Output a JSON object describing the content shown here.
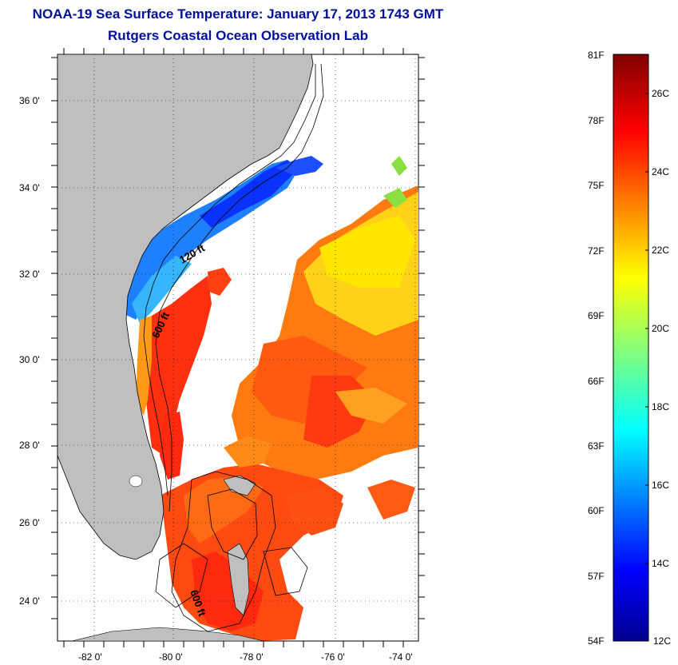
{
  "header": {
    "title": "NOAA-19 Sea Surface Temperature:  January 17, 2013 1743 GMT",
    "subtitle": "Rutgers Coastal Ocean Observation Lab"
  },
  "map": {
    "lat_ticks": [
      "36 0'",
      "34 0'",
      "32 0'",
      "30 0'",
      "28 0'",
      "26 0'",
      "24 0'"
    ],
    "lon_ticks": [
      "-82 0'",
      "-80 0'",
      "-78 0'",
      "-76 0'",
      "-74 0'"
    ],
    "contour_labels": [
      "120 ft",
      "600 ft",
      "600 ft"
    ],
    "colors": {
      "land": "#bfbfbf",
      "border": "#000000"
    }
  },
  "colorbar": {
    "f_labels": [
      "81F",
      "78F",
      "75F",
      "72F",
      "69F",
      "66F",
      "63F",
      "60F",
      "57F",
      "54F"
    ],
    "c_labels": [
      "26C",
      "24C",
      "22C",
      "20C",
      "18C",
      "16C",
      "14C",
      "12C"
    ]
  }
}
